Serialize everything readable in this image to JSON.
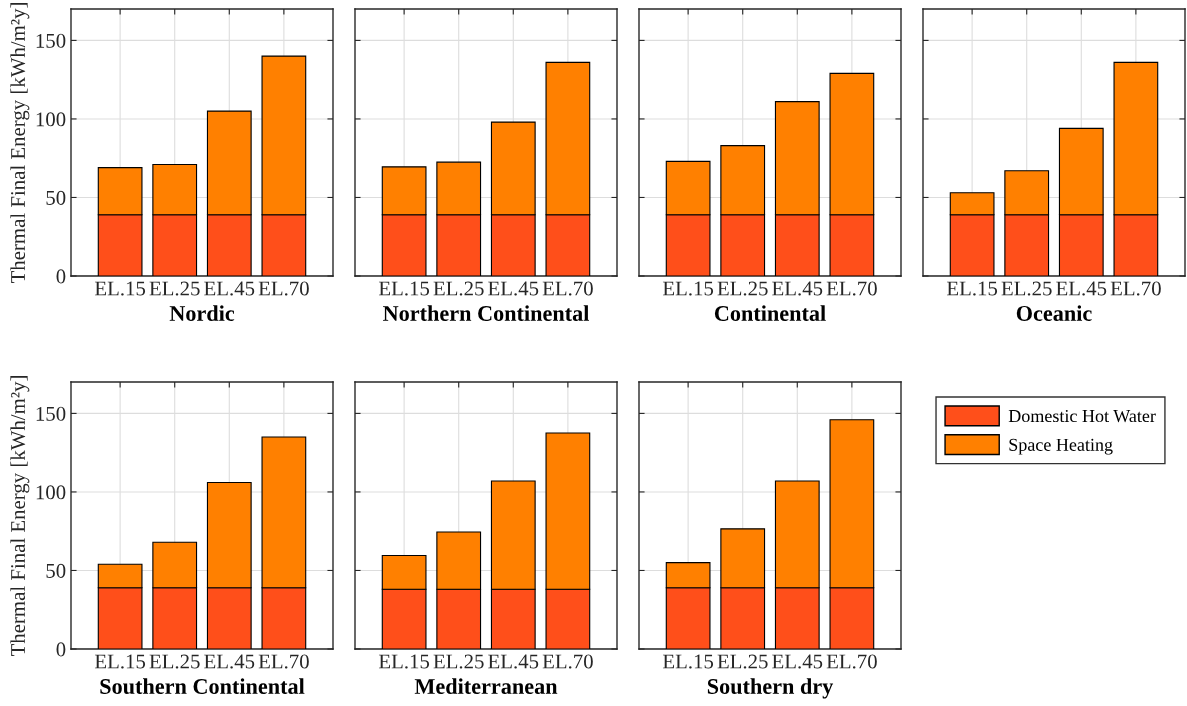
{
  "chart_data": [
    {
      "type": "bar",
      "stacked": true,
      "xlabel": "Nordic",
      "ylabel": "Thermal Final Energy [kWh/m²y]",
      "categories": [
        "EL.15",
        "EL.25",
        "EL.45",
        "EL.70"
      ],
      "ylim": [
        0,
        170
      ],
      "yticks": [
        0,
        50,
        100,
        150
      ],
      "grid": true,
      "series": [
        {
          "color": "#ff4f1a",
          "values": [
            39,
            39,
            39,
            39
          ]
        },
        {
          "color": "#ff8000",
          "values": [
            30,
            32,
            66,
            101
          ]
        }
      ]
    },
    {
      "type": "bar",
      "stacked": true,
      "xlabel": "Northern Continental",
      "categories": [
        "EL.15",
        "EL.25",
        "EL.45",
        "EL.70"
      ],
      "ylim": [
        0,
        170
      ],
      "yticks": [
        0,
        50,
        100,
        150
      ],
      "grid": true,
      "tick_labels": "x",
      "series": [
        {
          "color": "#ff4f1a",
          "values": [
            39,
            39,
            39,
            39
          ]
        },
        {
          "color": "#ff8000",
          "values": [
            30.5,
            33.5,
            59,
            97
          ]
        }
      ]
    },
    {
      "type": "bar",
      "stacked": true,
      "xlabel": "Continental",
      "categories": [
        "EL.15",
        "EL.25",
        "EL.45",
        "EL.70"
      ],
      "ylim": [
        0,
        170
      ],
      "yticks": [
        0,
        50,
        100,
        150
      ],
      "grid": true,
      "tick_labels": "x",
      "series": [
        {
          "color": "#ff4f1a",
          "values": [
            39,
            39,
            39,
            39
          ]
        },
        {
          "color": "#ff8000",
          "values": [
            34,
            44,
            72,
            90
          ]
        }
      ]
    },
    {
      "type": "bar",
      "stacked": true,
      "xlabel": "Oceanic",
      "categories": [
        "EL.15",
        "EL.25",
        "EL.45",
        "EL.70"
      ],
      "ylim": [
        0,
        170
      ],
      "yticks": [
        0,
        50,
        100,
        150
      ],
      "grid": true,
      "tick_labels": "x",
      "series": [
        {
          "color": "#ff4f1a",
          "values": [
            39,
            39,
            39,
            39
          ]
        },
        {
          "color": "#ff8000",
          "values": [
            14,
            28,
            55,
            97
          ]
        }
      ]
    },
    {
      "type": "bar",
      "stacked": true,
      "xlabel": "Southern Continental",
      "ylabel": "Thermal Final Energy [kWh/m²y]",
      "categories": [
        "EL.15",
        "EL.25",
        "EL.45",
        "EL.70"
      ],
      "ylim": [
        0,
        170
      ],
      "yticks": [
        0,
        50,
        100,
        150
      ],
      "grid": true,
      "series": [
        {
          "color": "#ff4f1a",
          "values": [
            39,
            39,
            39,
            39
          ]
        },
        {
          "color": "#ff8000",
          "values": [
            15,
            29,
            67,
            96
          ]
        }
      ]
    },
    {
      "type": "bar",
      "stacked": true,
      "xlabel": "Mediterranean",
      "categories": [
        "EL.15",
        "EL.25",
        "EL.45",
        "EL.70"
      ],
      "ylim": [
        0,
        170
      ],
      "yticks": [
        0,
        50,
        100,
        150
      ],
      "grid": true,
      "tick_labels": "x",
      "series": [
        {
          "color": "#ff4f1a",
          "values": [
            38,
            38,
            38,
            38
          ]
        },
        {
          "color": "#ff8000",
          "values": [
            21.5,
            36.5,
            69,
            99.5
          ]
        }
      ]
    },
    {
      "type": "bar",
      "stacked": true,
      "xlabel": "Southern dry",
      "categories": [
        "EL.15",
        "EL.25",
        "EL.45",
        "EL.70"
      ],
      "ylim": [
        0,
        170
      ],
      "yticks": [
        0,
        50,
        100,
        150
      ],
      "grid": true,
      "tick_labels": "x",
      "legend": "right",
      "series": [
        {
          "name": "Domestic Hot Water",
          "color": "#ff4f1a",
          "values": [
            39,
            39,
            39,
            39
          ]
        },
        {
          "name": "Space Heating",
          "color": "#ff8000",
          "values": [
            16,
            37.5,
            68,
            107
          ]
        }
      ]
    }
  ]
}
